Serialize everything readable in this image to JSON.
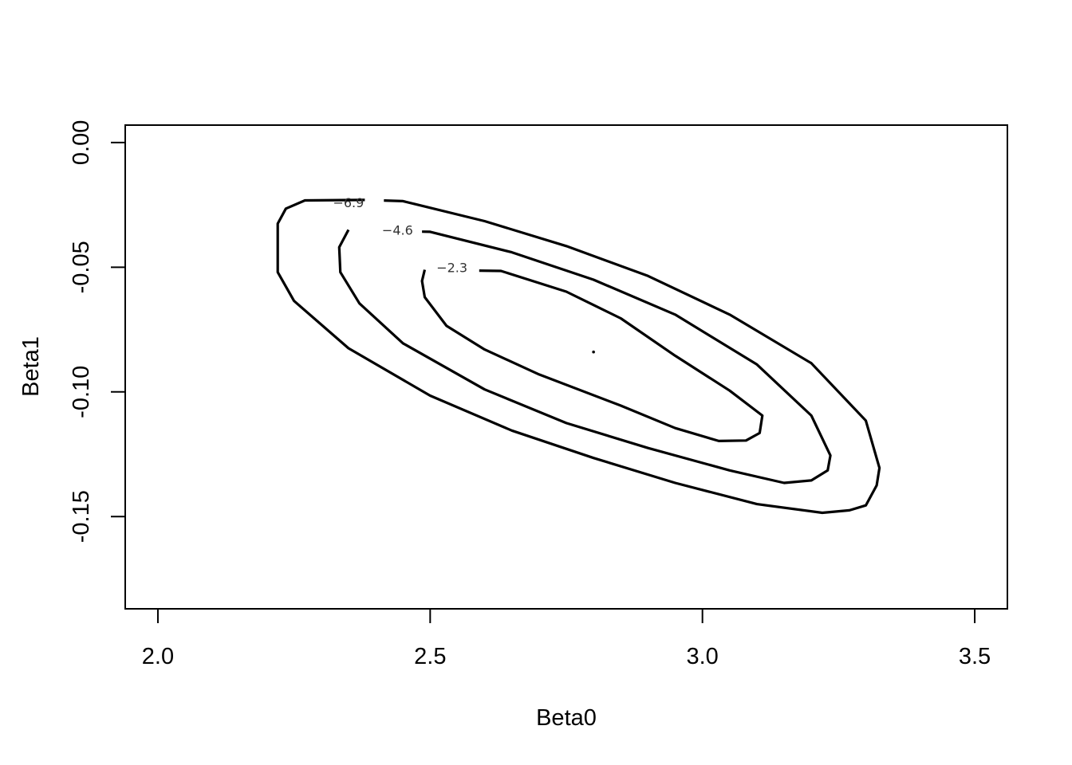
{
  "chart_data": {
    "type": "contour",
    "title": "",
    "xlabel": "Beta0",
    "ylabel": "Beta1",
    "xlim": [
      1.94,
      3.56
    ],
    "ylim": [
      -0.187,
      0.007
    ],
    "x_ticks": [
      2.0,
      2.5,
      3.0,
      3.5
    ],
    "x_tick_labels": [
      "2.0",
      "2.5",
      "3.0",
      "3.5"
    ],
    "y_ticks": [
      0.0,
      -0.05,
      -0.1,
      -0.15
    ],
    "y_tick_labels": [
      "0.00",
      "-0.05",
      "-0.10",
      "-0.15"
    ],
    "center": {
      "x": 2.8,
      "y": -0.084
    },
    "contours": [
      {
        "level": -2.3,
        "label": "−2.3",
        "points": [
          [
            2.49,
            -0.051
          ],
          [
            2.63,
            -0.0515
          ],
          [
            2.75,
            -0.0598
          ],
          [
            2.85,
            -0.0705
          ],
          [
            2.95,
            -0.0855
          ],
          [
            3.05,
            -0.0995
          ],
          [
            3.11,
            -0.1095
          ],
          [
            3.105,
            -0.1165
          ],
          [
            3.08,
            -0.1195
          ],
          [
            3.03,
            -0.1197
          ],
          [
            2.95,
            -0.1145
          ],
          [
            2.85,
            -0.1055
          ],
          [
            2.7,
            -0.093
          ],
          [
            2.6,
            -0.083
          ],
          [
            2.53,
            -0.0735
          ],
          [
            2.49,
            -0.062
          ],
          [
            2.485,
            -0.0555
          ],
          [
            2.49,
            -0.051
          ]
        ],
        "label_at": {
          "x": 2.54,
          "y": -0.05
        },
        "gap": [
          2.495,
          2.59
        ]
      },
      {
        "level": -4.6,
        "label": "−4.6",
        "points": [
          [
            2.35,
            -0.035
          ],
          [
            2.5,
            -0.0358
          ],
          [
            2.65,
            -0.044
          ],
          [
            2.8,
            -0.055
          ],
          [
            2.95,
            -0.069
          ],
          [
            3.1,
            -0.089
          ],
          [
            3.2,
            -0.1095
          ],
          [
            3.235,
            -0.1255
          ],
          [
            3.23,
            -0.1315
          ],
          [
            3.2,
            -0.1355
          ],
          [
            3.15,
            -0.1365
          ],
          [
            3.05,
            -0.1315
          ],
          [
            2.9,
            -0.1225
          ],
          [
            2.75,
            -0.1125
          ],
          [
            2.6,
            -0.099
          ],
          [
            2.45,
            -0.0805
          ],
          [
            2.37,
            -0.0645
          ],
          [
            2.335,
            -0.052
          ],
          [
            2.333,
            -0.042
          ],
          [
            2.35,
            -0.035
          ]
        ],
        "label_at": {
          "x": 2.44,
          "y": -0.035
        },
        "gap": [
          2.385,
          2.485
        ]
      },
      {
        "level": -6.9,
        "label": "−6.9",
        "points": [
          [
            2.27,
            -0.0232
          ],
          [
            2.38,
            -0.023
          ],
          [
            2.45,
            -0.0235
          ],
          [
            2.6,
            -0.0315
          ],
          [
            2.75,
            -0.0415
          ],
          [
            2.9,
            -0.0535
          ],
          [
            3.05,
            -0.069
          ],
          [
            3.2,
            -0.0885
          ],
          [
            3.3,
            -0.1115
          ],
          [
            3.325,
            -0.1305
          ],
          [
            3.32,
            -0.1375
          ],
          [
            3.3,
            -0.1455
          ],
          [
            3.27,
            -0.1475
          ],
          [
            3.22,
            -0.1485
          ],
          [
            3.1,
            -0.145
          ],
          [
            2.95,
            -0.1365
          ],
          [
            2.8,
            -0.1265
          ],
          [
            2.65,
            -0.1155
          ],
          [
            2.5,
            -0.1015
          ],
          [
            2.35,
            -0.0825
          ],
          [
            2.25,
            -0.0635
          ],
          [
            2.22,
            -0.052
          ],
          [
            2.22,
            -0.0325
          ],
          [
            2.235,
            -0.0265
          ],
          [
            2.27,
            -0.0232
          ]
        ],
        "label_at": {
          "x": 2.35,
          "y": -0.024
        },
        "gap": [
          2.285,
          2.415
        ]
      }
    ]
  }
}
